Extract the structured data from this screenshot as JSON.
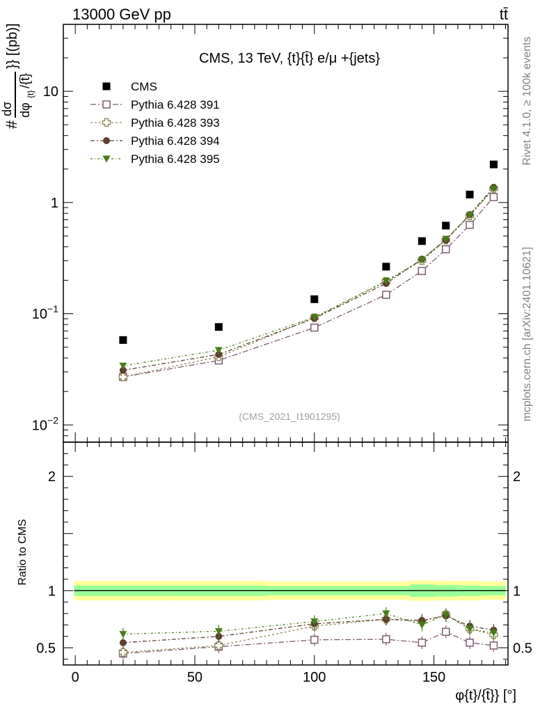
{
  "header": {
    "left": "13000 GeV pp",
    "right": "tt̄"
  },
  "side_labels": {
    "rivet": "Rivet 4.1.0, ≥ 100k events",
    "mcplots": "mcplots.cern.ch [arXiv:2401.10621]"
  },
  "colors": {
    "cms": "#000000",
    "p391": "#7a5a6e",
    "p393": "#8f8a57",
    "p394": "#5c4030",
    "p395": "#4a7c1a",
    "band_yellow": "#ffff99",
    "band_green": "#99ff99"
  },
  "chart_data": [
    {
      "type": "scatter",
      "panel": "main",
      "title": "CMS, 13 TeV, {t}{t̄} e/μ +{jets}",
      "watermark": "(CMS_2021_I1901295)",
      "ylabel_parts": [
        "#",
        "dσ",
        "dφ",
        "{t}",
        "/{t̄}",
        "}} [(pb)]"
      ],
      "yscale": "log",
      "ylim": [
        0.007,
        40
      ],
      "xlim": [
        -5,
        181
      ],
      "yticks": [
        {
          "value": 0.01,
          "base": "10",
          "exp": "−2"
        },
        {
          "value": 0.1,
          "base": "10",
          "exp": "−1"
        },
        {
          "value": 1,
          "base": "1",
          "exp": ""
        },
        {
          "value": 10,
          "base": "10",
          "exp": ""
        }
      ],
      "x": [
        20,
        60,
        100,
        130,
        145,
        155,
        165,
        175
      ],
      "series": [
        {
          "name": "CMS",
          "key": "cms",
          "marker": "square-filled",
          "line": false,
          "values": [
            0.058,
            0.076,
            0.135,
            0.265,
            0.45,
            0.62,
            1.18,
            2.2
          ]
        },
        {
          "name": "Pythia 6.428 391",
          "key": "p391",
          "marker": "square-open",
          "line": true,
          "values": [
            0.027,
            0.038,
            0.075,
            0.148,
            0.242,
            0.38,
            0.63,
            1.12
          ]
        },
        {
          "name": "Pythia 6.428 393",
          "key": "p393",
          "marker": "cross-open",
          "line": true,
          "values": [
            0.027,
            0.041,
            0.092,
            0.195,
            0.3,
            0.46,
            0.76,
            1.33
          ]
        },
        {
          "name": "Pythia 6.428 394",
          "key": "p394",
          "marker": "circle-filled",
          "line": true,
          "values": [
            0.031,
            0.043,
            0.091,
            0.187,
            0.31,
            0.46,
            0.78,
            1.37
          ]
        },
        {
          "name": "Pythia 6.428 395",
          "key": "p395",
          "marker": "triangle-down-filled",
          "line": true,
          "values": [
            0.034,
            0.047,
            0.093,
            0.197,
            0.305,
            0.47,
            0.77,
            1.33
          ]
        }
      ]
    },
    {
      "type": "scatter",
      "panel": "ratio",
      "ylabel": "Ratio to CMS",
      "xlabel": "φ{t}/{t̄}} [°]",
      "ylim": [
        0.35,
        2.3
      ],
      "xlim": [
        -5,
        181
      ],
      "yticks": [
        0.5,
        1,
        2
      ],
      "xticks": [
        0,
        50,
        100,
        150
      ],
      "x": [
        20,
        60,
        100,
        130,
        145,
        155,
        165,
        175
      ],
      "band_edges": [
        -0.5,
        40,
        80,
        120,
        140,
        150,
        160,
        170,
        180
      ],
      "band_yellow": [
        0.085,
        0.085,
        0.08,
        0.08,
        0.09,
        0.085,
        0.085,
        0.08
      ],
      "band_green": [
        0.045,
        0.045,
        0.04,
        0.04,
        0.055,
        0.05,
        0.045,
        0.04
      ],
      "series": [
        {
          "name": "Pythia 6.428 391",
          "key": "p391",
          "marker": "square-open",
          "values": [
            0.45,
            0.51,
            0.57,
            0.575,
            0.545,
            0.64,
            0.545,
            0.52
          ]
        },
        {
          "name": "Pythia 6.428 393",
          "key": "p393",
          "marker": "cross-open",
          "values": [
            0.46,
            0.52,
            0.69,
            0.75,
            0.73,
            0.79,
            0.665,
            0.615
          ]
        },
        {
          "name": "Pythia 6.428 394",
          "key": "p394",
          "marker": "circle-filled",
          "values": [
            0.545,
            0.6,
            0.71,
            0.75,
            0.74,
            0.78,
            0.69,
            0.655
          ]
        },
        {
          "name": "Pythia 6.428 395",
          "key": "p395",
          "marker": "triangle-down-filled",
          "values": [
            0.62,
            0.645,
            0.73,
            0.8,
            0.7,
            0.79,
            0.665,
            0.63
          ]
        }
      ]
    }
  ]
}
